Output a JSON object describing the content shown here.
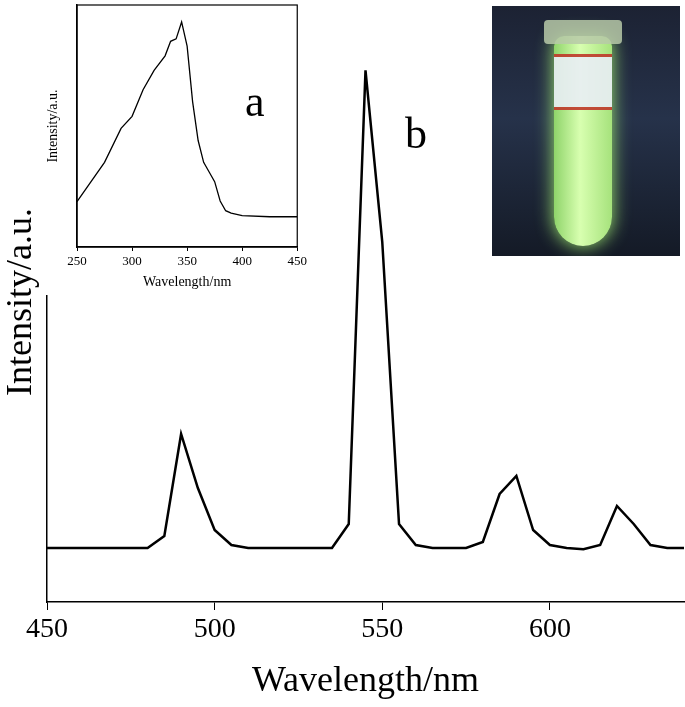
{
  "chart_data": [
    {
      "type": "line",
      "x_label": "Wavelength/nm",
      "y_label": "Intensity/a.u.",
      "annotation": "b",
      "x": [
        450,
        455,
        460,
        465,
        470,
        475,
        480,
        485,
        490,
        495,
        500,
        505,
        510,
        515,
        520,
        525,
        530,
        535,
        540,
        545,
        550,
        555,
        560,
        565,
        570,
        575,
        580,
        585,
        590,
        595,
        600,
        605,
        610,
        615,
        620,
        625,
        630,
        635,
        640
      ],
      "values": [
        9,
        9,
        9,
        9,
        9,
        9,
        9,
        11,
        28,
        19,
        12,
        9.5,
        9,
        9,
        9,
        9,
        9,
        9,
        13,
        88.6,
        60,
        13,
        9.5,
        9,
        9,
        9,
        10,
        18,
        21,
        12,
        9.5,
        9,
        8.8,
        9.5,
        16,
        13,
        9.5,
        9,
        9
      ],
      "color": "#000000",
      "xlim": [
        450,
        640
      ],
      "xticks": [
        450,
        500,
        550,
        600
      ],
      "ylim": [
        0,
        100
      ],
      "tick_labels": "x",
      "grid": false
    },
    {
      "type": "line",
      "x_label": "Wavelength/nm",
      "y_label": "Intensity/a.u.",
      "annotation": "a",
      "x": [
        250,
        275,
        290,
        300,
        310,
        320,
        330,
        335,
        340,
        345,
        350,
        355,
        360,
        365,
        370,
        375,
        380,
        385,
        390,
        400,
        425,
        450
      ],
      "values": [
        18.75,
        35,
        49,
        54,
        65,
        73,
        79,
        85,
        86,
        93,
        83,
        60,
        44,
        35,
        31,
        27,
        19,
        15,
        14,
        13,
        12.5,
        12.5
      ],
      "color": "#000000",
      "xlim": [
        250,
        450
      ],
      "xticks": [
        250,
        300,
        350,
        400,
        450
      ],
      "ylim": [
        0,
        100
      ],
      "tick_labels": "x",
      "grid": false
    }
  ]
}
